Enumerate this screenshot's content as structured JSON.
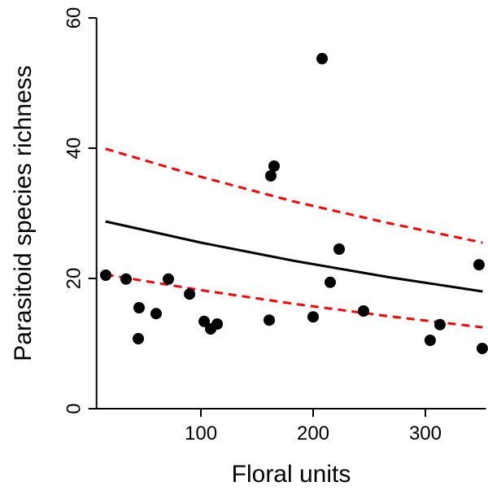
{
  "chart_data": {
    "type": "scatter",
    "x_label": "Floral units",
    "y_label": "Parasitoid species richness",
    "x": [
      15.2,
      33.3,
      44.9,
      44.2,
      60.1,
      71,
      89.9,
      102.9,
      108.7,
      114.5,
      160.9,
      162.3,
      165.2,
      200,
      208,
      215.2,
      223.2,
      244.9,
      304.3,
      313,
      347.8,
      350.7
    ],
    "values": [
      20.5,
      19.9,
      15.5,
      10.75,
      14.6,
      19.9,
      17.6,
      13.4,
      12.25,
      13,
      13.6,
      35.75,
      37.25,
      14.1,
      53.75,
      19.4,
      24.5,
      15,
      10.5,
      12.9,
      22.1,
      9.25
    ],
    "color": "#000000",
    "lines": [
      {
        "x": [
          15,
          100,
          183,
          267,
          351
        ],
        "values": [
          28.75,
          25.5,
          22.7,
          20.2,
          18.0
        ],
        "color": "#000000",
        "dashed": false
      },
      {
        "x": [
          15,
          100,
          183,
          267,
          351
        ],
        "values": [
          39.9,
          35.6,
          31.8,
          28.5,
          25.5
        ],
        "color": "#ff0000",
        "dashed": true
      },
      {
        "x": [
          15,
          100,
          183,
          267,
          351
        ],
        "values": [
          20.6,
          18.2,
          16.1,
          14.2,
          12.5
        ],
        "color": "#ff0000",
        "dashed": true
      }
    ],
    "xlim": [
      7,
      354
    ],
    "ylim": [
      0,
      60
    ],
    "xticks": [
      100,
      200,
      300
    ],
    "yticks": [
      0,
      20,
      40,
      60
    ]
  }
}
